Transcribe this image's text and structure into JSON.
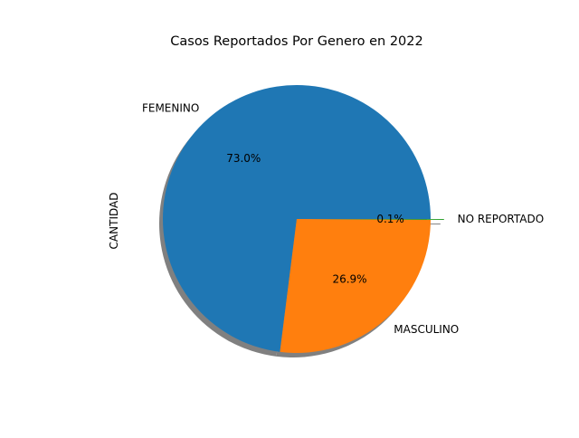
{
  "chart_data": {
    "type": "pie",
    "title": "Casos Reportados Por Genero en 2022",
    "ylabel": "CANTIDAD",
    "shadow": true,
    "start_angle_deg": 0,
    "counterclockwise": true,
    "slices": [
      {
        "label": "FEMENINO",
        "value": 73.0,
        "pct_label": "73.0%",
        "color": "#1f77b4",
        "explode": 0
      },
      {
        "label": "MASCULINO",
        "value": 26.9,
        "pct_label": "26.9%",
        "color": "#ff7f0e",
        "explode": 0
      },
      {
        "label": "NO REPORTADO",
        "value": 0.1,
        "pct_label": "0.1%",
        "color": "#2ca02c",
        "explode": 0.1
      }
    ]
  }
}
